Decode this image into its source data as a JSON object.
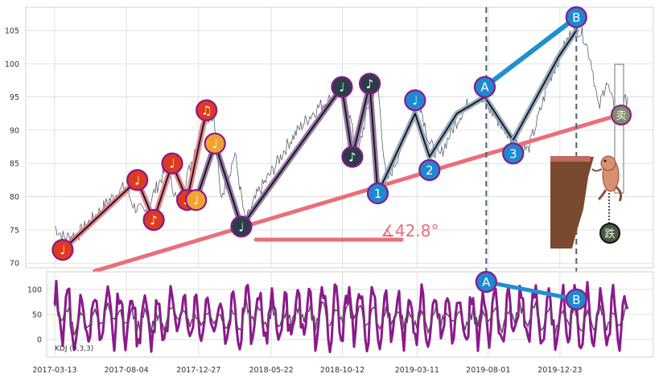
{
  "colors": {
    "background": "#ffffff",
    "grid": "#d9d9d9",
    "axis_frame": "#d0d0d0",
    "price_line": "#5a6270",
    "trendline": "#e96f7a",
    "wave_pink": "#e27b84",
    "wave_purple": "#8c6a9e",
    "wave_blue": "#8fa4bd",
    "ab_divergence": "#1e90d0",
    "marker_red": "#dd3a1f",
    "marker_orange": "#f2a233",
    "marker_dark": "#2b3e48",
    "marker_blue": "#1e88d0",
    "marker_border": "#8a188e",
    "kdj_line": "#8b1a8b",
    "kdj_signal": "#6d3f6d",
    "vline": "#4f5f76",
    "monkey": "#d9906f",
    "tree": "#7a4a30",
    "angle_text": "#e96f7a"
  },
  "chart_data": [
    {
      "type": "line",
      "panel": "price",
      "title": "",
      "xlabel": "",
      "ylabel": "",
      "xlim": [
        "2017-03-13",
        "2020-05-07"
      ],
      "ylim": [
        69.3,
        108.5
      ],
      "y_ticks": [
        70,
        75,
        80,
        85,
        90,
        95,
        100,
        105
      ],
      "x_ticks": [
        "2017-03-13",
        "2017-08-04",
        "2017-12-27",
        "2018-05-22",
        "2018-10-12",
        "2019-03-11",
        "2019-08-01",
        "2019-12-23"
      ],
      "grid": true,
      "series": [
        {
          "x": [
            "2017-03-13",
            "2017-04-01",
            "2017-05-01",
            "2017-06-01",
            "2017-07-01",
            "2017-08-01",
            "2017-08-20",
            "2017-09-10",
            "2017-10-01",
            "2017-10-25",
            "2017-11-15",
            "2017-12-08",
            "2018-01-05",
            "2018-01-26",
            "2018-02-09",
            "2018-02-23",
            "2018-03-10",
            "2018-03-31",
            "2018-04-25",
            "2018-05-25",
            "2018-06-25",
            "2018-07-25",
            "2018-08-25",
            "2018-09-25",
            "2018-10-15",
            "2018-10-30",
            "2018-11-10",
            "2018-11-25",
            "2018-12-08",
            "2018-12-22",
            "2019-01-08",
            "2019-01-31",
            "2019-02-20",
            "2019-03-15",
            "2019-04-05",
            "2019-04-25",
            "2019-05-20",
            "2019-06-15",
            "2019-07-10",
            "2019-07-31",
            "2019-08-25",
            "2019-09-20",
            "2019-10-20",
            "2019-11-10",
            "2019-12-01",
            "2019-12-22",
            "2020-01-10",
            "2020-01-25",
            "2020-02-10",
            "2020-02-25",
            "2020-03-10",
            "2020-03-25",
            "2020-04-15",
            "2020-05-07"
          ],
          "values": [
            75.5,
            73.8,
            74.5,
            77.0,
            79.5,
            81.5,
            78.5,
            77.5,
            81.0,
            84.5,
            79.0,
            84.0,
            91.5,
            92.5,
            80.0,
            82.5,
            86.5,
            76.0,
            80.5,
            84.0,
            88.0,
            91.0,
            93.5,
            95.0,
            96.5,
            91.0,
            85.5,
            91.0,
            95.0,
            97.0,
            82.0,
            86.0,
            91.0,
            94.5,
            88.0,
            86.0,
            90.0,
            93.5,
            95.0,
            93.5,
            91.0,
            88.5,
            87.0,
            92.0,
            97.5,
            101.0,
            104.0,
            105.5,
            104.0,
            100.0,
            93.0,
            97.5,
            92.0,
            95.0
          ]
        }
      ],
      "trendline": {
        "x": [
          "2017-06-01",
          "2020-04-15"
        ],
        "y": [
          68.8,
          92.2
        ]
      },
      "angle_annotation": "∡42.8°",
      "waves": [
        {
          "x": [
            "2017-03-29",
            "2017-08-26",
            "2017-09-28",
            "2017-11-04",
            "2017-12-04",
            "2018-01-12"
          ],
          "y": [
            72.0,
            82.5,
            76.5,
            85.0,
            79.5,
            93.0
          ],
          "color_key": "wave_pink"
        },
        {
          "x": [
            "2017-12-22",
            "2018-01-29",
            "2018-03-23"
          ],
          "y": [
            79.5,
            88.0,
            75.5
          ],
          "color_key": "wave_purple"
        },
        {
          "x": [
            "2018-03-23",
            "2018-10-11",
            "2018-11-01",
            "2018-12-06",
            "2018-12-22"
          ],
          "y": [
            75.5,
            96.5,
            86.0,
            97.0,
            80.5
          ],
          "color_key": "wave_purple"
        },
        {
          "x": [
            "2018-12-22",
            "2019-03-07",
            "2019-04-05",
            "2019-05-30",
            "2019-07-25",
            "2019-09-20"
          ],
          "y": [
            80.5,
            92.5,
            86.0,
            92.5,
            95.0,
            88.5
          ],
          "color_key": "wave_blue"
        },
        {
          "x": [
            "2019-09-20",
            "2019-12-20",
            "2020-01-25"
          ],
          "y": [
            88.5,
            101.0,
            105.0
          ],
          "color_key": "wave_blue"
        }
      ],
      "markers": [
        {
          "label": "♩",
          "x": "2017-03-29",
          "y": 72.0,
          "kind": "red"
        },
        {
          "label": "♩",
          "x": "2017-08-26",
          "y": 82.5,
          "kind": "red"
        },
        {
          "label": "♪",
          "x": "2017-09-28",
          "y": 76.5,
          "kind": "red"
        },
        {
          "label": "♩",
          "x": "2017-11-04",
          "y": 85.0,
          "kind": "red"
        },
        {
          "label": "♫",
          "x": "2017-12-04",
          "y": 79.5,
          "kind": "red"
        },
        {
          "label": "♫",
          "x": "2018-01-12",
          "y": 93.0,
          "kind": "red"
        },
        {
          "label": "♩",
          "x": "2017-12-22",
          "y": 79.5,
          "kind": "orange"
        },
        {
          "label": "♩",
          "x": "2018-01-29",
          "y": 88.0,
          "kind": "orange"
        },
        {
          "label": "♩",
          "x": "2018-03-23",
          "y": 75.5,
          "kind": "dark"
        },
        {
          "label": "♩",
          "x": "2018-10-11",
          "y": 96.5,
          "kind": "dark"
        },
        {
          "label": "♪",
          "x": "2018-11-01",
          "y": 86.0,
          "kind": "dark"
        },
        {
          "label": "♪",
          "x": "2018-12-06",
          "y": 97.0,
          "kind": "dark"
        },
        {
          "label": "1",
          "x": "2018-12-22",
          "y": 80.5,
          "kind": "blue"
        },
        {
          "label": "♩",
          "x": "2019-03-07",
          "y": 94.5,
          "kind": "blue"
        },
        {
          "label": "2",
          "x": "2019-04-05",
          "y": 84.0,
          "kind": "blue"
        },
        {
          "label": "A",
          "x": "2019-07-25",
          "y": 96.5,
          "kind": "blue"
        },
        {
          "label": "3",
          "x": "2019-09-20",
          "y": 86.5,
          "kind": "blue"
        },
        {
          "label": "B",
          "x": "2020-01-25",
          "y": 107.0,
          "kind": "blue"
        }
      ],
      "seal_labels": [
        "卖",
        "跌"
      ],
      "vertical_markers": [
        "2019-07-28",
        "2020-01-25"
      ]
    },
    {
      "type": "line",
      "panel": "indicator",
      "title": "",
      "xlabel": "",
      "ylabel": "",
      "legend_label": "KDJ (9,3,3)",
      "xlim": [
        "2017-03-13",
        "2020-05-07"
      ],
      "ylim": [
        -35,
        135
      ],
      "y_ticks": [
        0,
        50,
        100
      ],
      "grid": true,
      "divergence": {
        "x": [
          "2019-07-28",
          "2020-01-25"
        ],
        "y": [
          115,
          80
        ],
        "labels": [
          "A",
          "B"
        ]
      }
    }
  ]
}
